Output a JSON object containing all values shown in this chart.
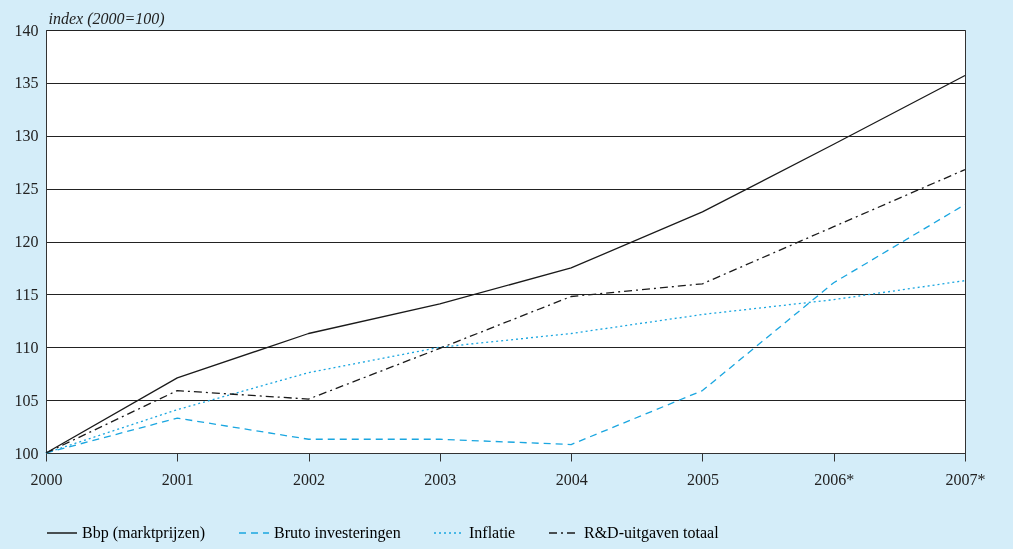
{
  "chart_data": {
    "type": "line",
    "ylabel": "index (2000=100)",
    "categories": [
      "2000",
      "2001",
      "2002",
      "2003",
      "2004",
      "2005",
      "2006*",
      "2007*"
    ],
    "ylim": [
      100,
      140
    ],
    "yticks": [
      100,
      105,
      110,
      115,
      120,
      125,
      130,
      135,
      140
    ],
    "grid": "y",
    "legend": "bottom",
    "series": [
      {
        "name": "Bbp (marktprijzen)",
        "color": "#1a1a1a",
        "line_style": "solid",
        "values": [
          100,
          107.1,
          111.3,
          114.1,
          117.5,
          122.8,
          129.2,
          135.7
        ]
      },
      {
        "name": "Bruto investeringen",
        "color": "#1aa6e0",
        "line_style": "dashed",
        "values": [
          100,
          103.3,
          101.3,
          101.3,
          100.8,
          105.9,
          116.1,
          123.5
        ]
      },
      {
        "name": "Inflatie",
        "color": "#1aa6e0",
        "line_style": "dotted",
        "values": [
          100,
          104.1,
          107.6,
          110.0,
          111.3,
          113.1,
          114.5,
          116.3
        ]
      },
      {
        "name": "R&D-uitgaven totaal",
        "color": "#1a1a1a",
        "line_style": "dashdot",
        "values": [
          100,
          105.9,
          105.1,
          109.9,
          114.8,
          116.0,
          121.4,
          126.8
        ]
      }
    ]
  }
}
